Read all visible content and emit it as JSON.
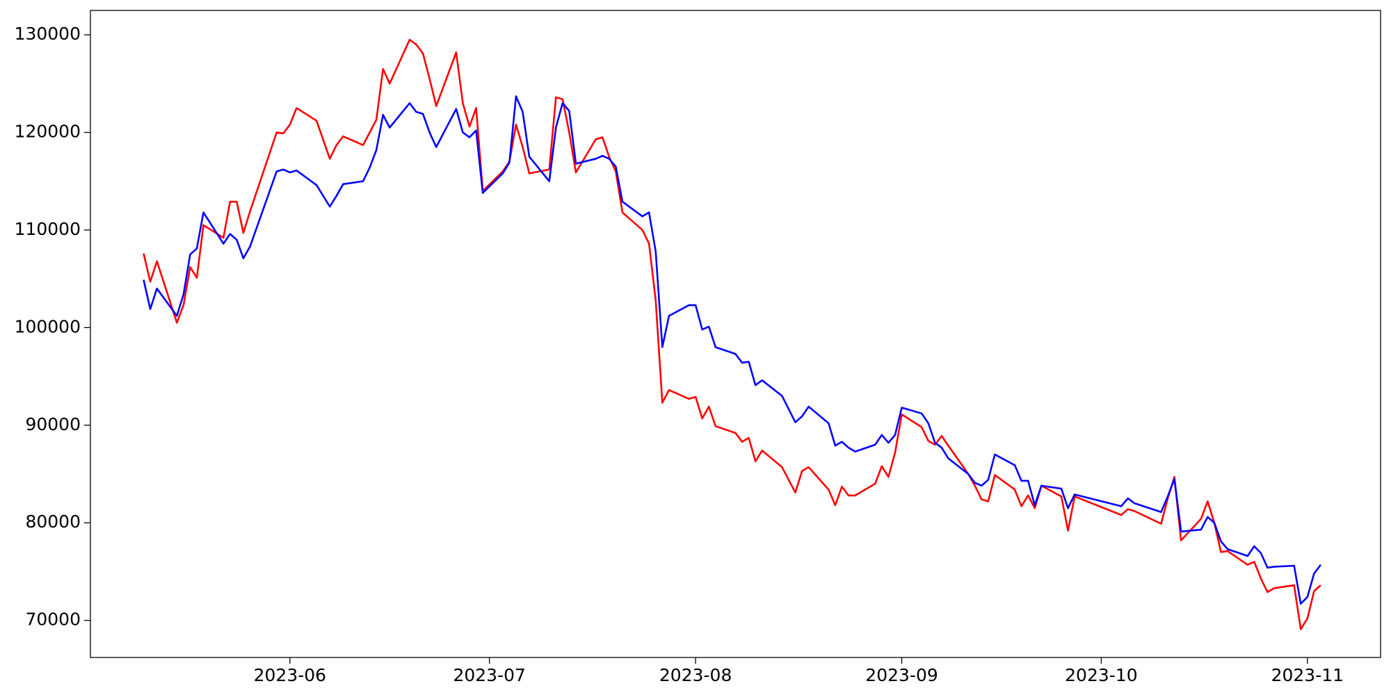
{
  "chart_data": {
    "type": "line",
    "x": [
      "2023-05-10",
      "2023-05-11",
      "2023-05-12",
      "2023-05-15",
      "2023-05-16",
      "2023-05-17",
      "2023-05-18",
      "2023-05-19",
      "2023-05-22",
      "2023-05-23",
      "2023-05-24",
      "2023-05-25",
      "2023-05-26",
      "2023-05-30",
      "2023-05-31",
      "2023-06-01",
      "2023-06-02",
      "2023-06-05",
      "2023-06-07",
      "2023-06-08",
      "2023-06-09",
      "2023-06-12",
      "2023-06-13",
      "2023-06-14",
      "2023-06-15",
      "2023-06-16",
      "2023-06-19",
      "2023-06-20",
      "2023-06-21",
      "2023-06-22",
      "2023-06-23",
      "2023-06-26",
      "2023-06-27",
      "2023-06-28",
      "2023-06-29",
      "2023-06-30",
      "2023-07-03",
      "2023-07-04",
      "2023-07-05",
      "2023-07-06",
      "2023-07-07",
      "2023-07-10",
      "2023-07-11",
      "2023-07-12",
      "2023-07-13",
      "2023-07-14",
      "2023-07-17",
      "2023-07-18",
      "2023-07-19",
      "2023-07-20",
      "2023-07-21",
      "2023-07-24",
      "2023-07-25",
      "2023-07-26",
      "2023-07-27",
      "2023-07-28",
      "2023-07-31",
      "2023-08-01",
      "2023-08-02",
      "2023-08-03",
      "2023-08-04",
      "2023-08-07",
      "2023-08-08",
      "2023-08-09",
      "2023-08-10",
      "2023-08-11",
      "2023-08-14",
      "2023-08-16",
      "2023-08-17",
      "2023-08-18",
      "2023-08-21",
      "2023-08-22",
      "2023-08-23",
      "2023-08-24",
      "2023-08-25",
      "2023-08-28",
      "2023-08-29",
      "2023-08-30",
      "2023-08-31",
      "2023-09-01",
      "2023-09-04",
      "2023-09-05",
      "2023-09-06",
      "2023-09-07",
      "2023-09-08",
      "2023-09-11",
      "2023-09-12",
      "2023-09-13",
      "2023-09-14",
      "2023-09-15",
      "2023-09-18",
      "2023-09-19",
      "2023-09-20",
      "2023-09-21",
      "2023-09-22",
      "2023-09-25",
      "2023-09-26",
      "2023-09-27",
      "2023-10-04",
      "2023-10-05",
      "2023-10-06",
      "2023-10-10",
      "2023-10-11",
      "2023-10-12",
      "2023-10-13",
      "2023-10-16",
      "2023-10-17",
      "2023-10-18",
      "2023-10-19",
      "2023-10-20",
      "2023-10-23",
      "2023-10-24",
      "2023-10-25",
      "2023-10-26",
      "2023-10-27",
      "2023-10-30",
      "2023-10-31",
      "2023-11-01",
      "2023-11-02",
      "2023-11-03"
    ],
    "series": [
      {
        "color": "red",
        "values": [
          107600,
          104700,
          106800,
          100500,
          102300,
          106200,
          105100,
          110500,
          109200,
          112900,
          112900,
          109700,
          111900,
          120000,
          119900,
          120800,
          122500,
          121200,
          117300,
          118700,
          119600,
          118700,
          120000,
          121300,
          126500,
          125000,
          129500,
          129000,
          128100,
          125500,
          122700,
          128200,
          123000,
          120600,
          122500,
          114000,
          116000,
          117000,
          120800,
          118500,
          115800,
          116200,
          123600,
          123400,
          120000,
          115900,
          119300,
          119500,
          117500,
          116000,
          111800,
          110000,
          108600,
          102800,
          92300,
          93600,
          92700,
          92900,
          90700,
          91900,
          89900,
          89200,
          88300,
          88700,
          86300,
          87400,
          85700,
          83100,
          85300,
          85700,
          83400,
          81800,
          83700,
          82800,
          82800,
          84000,
          85800,
          84700,
          87200,
          91100,
          89800,
          88400,
          88000,
          88900,
          87900,
          85000,
          83800,
          82400,
          82200,
          84900,
          83400,
          81700,
          82800,
          81500,
          83800,
          82700,
          79200,
          82700,
          80800,
          81400,
          81200,
          79900,
          82500,
          84700,
          78200,
          80400,
          82200,
          80000,
          77000,
          77100,
          75700,
          76000,
          74300,
          72900,
          73300,
          73600,
          69100,
          70200,
          73000,
          73600
        ]
      },
      {
        "color": "blue",
        "values": [
          104900,
          101900,
          104000,
          101200,
          103400,
          107500,
          108100,
          111800,
          108600,
          109600,
          109000,
          107100,
          108300,
          116000,
          116200,
          115900,
          116100,
          114600,
          112400,
          113500,
          114700,
          115000,
          116400,
          118200,
          121800,
          120500,
          123000,
          122100,
          121900,
          120000,
          118500,
          122400,
          120000,
          119500,
          120200,
          113800,
          115800,
          116900,
          123700,
          122100,
          117500,
          115000,
          120500,
          123000,
          122200,
          116800,
          117300,
          117600,
          117300,
          116500,
          112900,
          111400,
          111800,
          107800,
          98000,
          101200,
          102300,
          102300,
          99800,
          100100,
          98000,
          97300,
          96400,
          96500,
          94100,
          94600,
          93000,
          90300,
          90900,
          91900,
          90200,
          87900,
          88300,
          87700,
          87300,
          88000,
          89000,
          88200,
          89000,
          91800,
          91200,
          90200,
          88200,
          87700,
          86600,
          85000,
          84100,
          83800,
          84400,
          87000,
          85900,
          84300,
          84300,
          81800,
          83800,
          83500,
          81500,
          82900,
          81700,
          82500,
          82000,
          81100,
          82700,
          84500,
          79100,
          79300,
          80600,
          80000,
          78100,
          77300,
          76600,
          77600,
          76900,
          75400,
          75500,
          75600,
          71700,
          72400,
          74800,
          75700
        ]
      }
    ],
    "xlim": [
      "2023-05-02",
      "2023-11-12"
    ],
    "xticks": [
      "2023-06",
      "2023-07",
      "2023-08",
      "2023-09",
      "2023-10",
      "2023-11"
    ],
    "ylim": [
      66200,
      132500
    ],
    "yticks": [
      70000,
      80000,
      90000,
      100000,
      110000,
      120000,
      130000
    ],
    "grid": false
  }
}
